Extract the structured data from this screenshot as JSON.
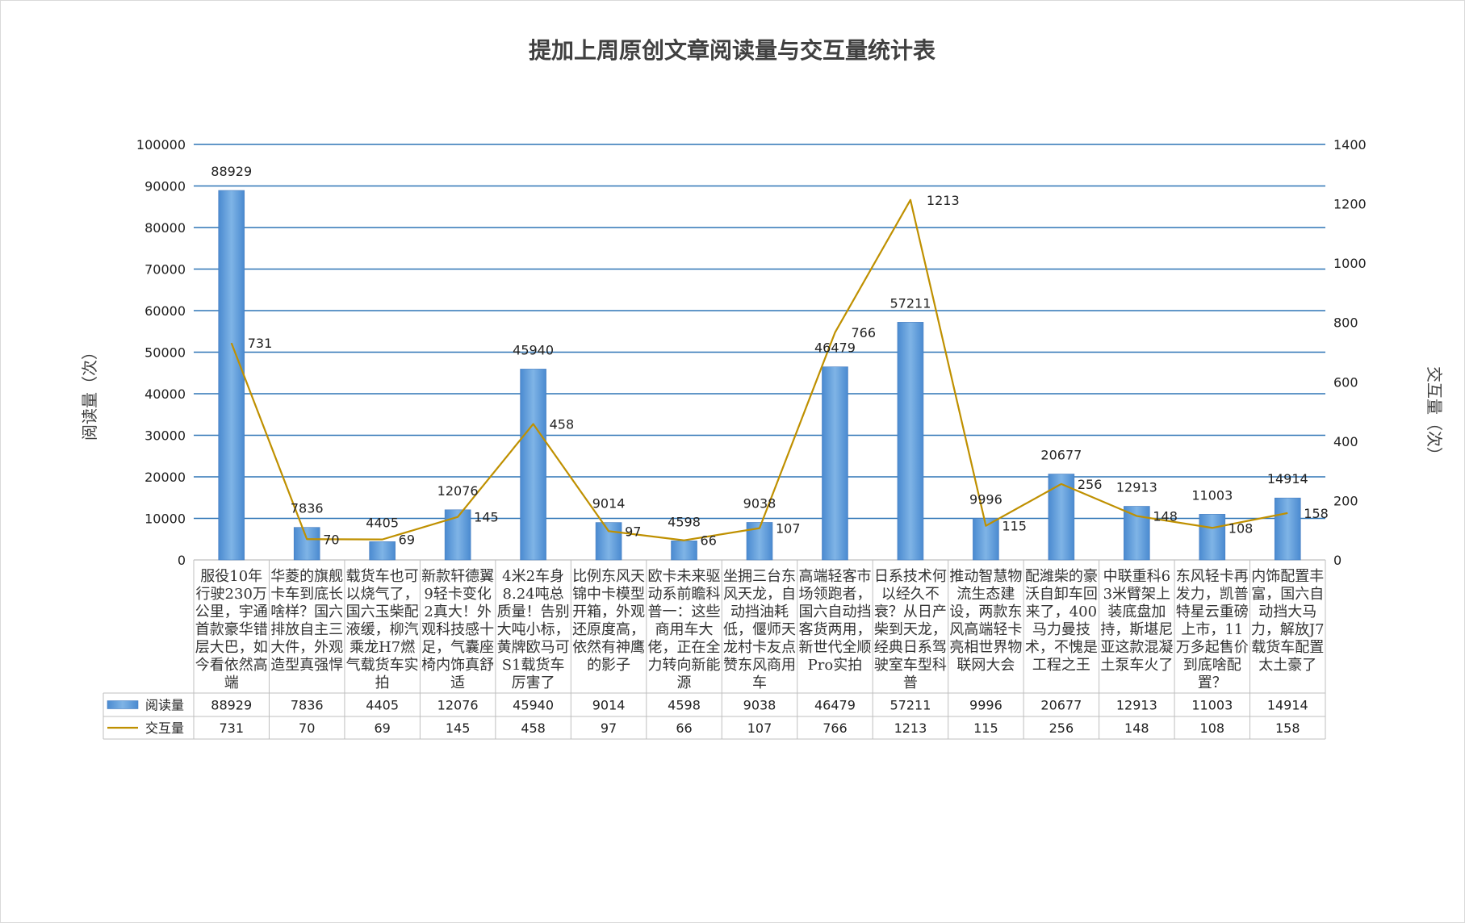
{
  "chart_data": {
    "type": "bar",
    "title": "提加上周原创文章阅读量与交互量统计表",
    "ylabel_left": "阅读量（次）",
    "ylabel_right": "交互量（次）",
    "ylim_left": [
      0,
      100000
    ],
    "ylim_right": [
      0,
      1400
    ],
    "left_ticks": [
      "0",
      "10000",
      "20000",
      "30000",
      "40000",
      "50000",
      "60000",
      "70000",
      "80000",
      "90000",
      "100000"
    ],
    "right_ticks": [
      "0",
      "200",
      "400",
      "600",
      "800",
      "1000",
      "1200",
      "1400"
    ],
    "grid": true,
    "legend": "data-table",
    "categories": [
      "服役10年行驶230万公里，宇通首款豪华错层大巴，如今看依然高端",
      "华菱的旗舰卡车到底长啥样？国六排放自主三大件，外观造型真强悍",
      "载货车也可以烧气了，国六玉柴配液缓，柳汽乘龙H7燃气载货车实拍",
      "新款轩德翼9轻卡变化2真大！外观科技感十足，气囊座椅内饰真舒适",
      "4米2车身8.24吨总质量！告别大吨小标，黄牌欧马可S1载货车厉害了",
      "比例东风天锦中卡模型开箱，外观还原度高，依然有神鹰的影子",
      "欧卡未来驱动系前瞻科普一：这些商用车大佬，正在全力转向新能源",
      "坐拥三台东风天龙，自动挡油耗低，偃师天龙村卡友点赞东风商用车",
      "高端轻客市场领跑者，国六自动挡客货两用，新世代全顺Pro实拍",
      "日系技术何以经久不衰？从日产柴到天龙，经典日系驾驶室车型科普",
      "推动智慧物流生态建设，两款东风高端轻卡亮相世界物联网大会",
      "配潍柴的豪沃自卸车回来了，400马力曼技术，不愧是工程之王",
      "中联重科63米臂架上装底盘加持，斯堪尼亚这款混凝土泵车火了",
      "东风轻卡再发力，凯普特星云重磅上市，11万多起售价到底啥配置？",
      "内饰配置丰富，国六自动挡大马力，解放J7载货车配置太土豪了"
    ],
    "series": [
      {
        "name": "阅读量",
        "type": "bar",
        "axis": "left",
        "color": "#5b9bd5",
        "values": [
          88929,
          7836,
          4405,
          12076,
          45940,
          9014,
          4598,
          9038,
          46479,
          57211,
          9996,
          20677,
          12913,
          11003,
          14914
        ]
      },
      {
        "name": "交互量",
        "type": "line",
        "axis": "right",
        "color": "#bf9000",
        "values": [
          731,
          70,
          69,
          145,
          458,
          97,
          66,
          107,
          766,
          1213,
          115,
          256,
          148,
          108,
          158
        ]
      }
    ]
  }
}
